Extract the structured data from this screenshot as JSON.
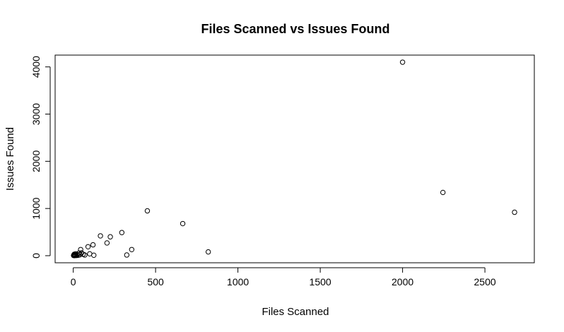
{
  "chart_data": {
    "type": "scatter",
    "title": "Files Scanned vs Issues Found",
    "xlabel": "Files Scanned",
    "ylabel": "Issues Found",
    "xlim": [
      -110,
      2800
    ],
    "ylim": [
      -150,
      4250
    ],
    "xticks": [
      0,
      500,
      1000,
      1500,
      2000,
      2500
    ],
    "yticks": [
      0,
      1000,
      2000,
      3000,
      4000
    ],
    "grid": false,
    "legend": "none",
    "colors": {
      "point": "#000000",
      "axis": "#000000",
      "background": "#ffffff"
    },
    "points": [
      {
        "x": 2,
        "y": 5
      },
      {
        "x": 4,
        "y": 15
      },
      {
        "x": 6,
        "y": 30
      },
      {
        "x": 8,
        "y": 2
      },
      {
        "x": 10,
        "y": 20
      },
      {
        "x": 12,
        "y": 8
      },
      {
        "x": 15,
        "y": 40
      },
      {
        "x": 18,
        "y": 12
      },
      {
        "x": 20,
        "y": 5
      },
      {
        "x": 25,
        "y": 25
      },
      {
        "x": 30,
        "y": 10
      },
      {
        "x": 35,
        "y": 55
      },
      {
        "x": 40,
        "y": 20
      },
      {
        "x": 45,
        "y": 130
      },
      {
        "x": 50,
        "y": 60
      },
      {
        "x": 60,
        "y": 30
      },
      {
        "x": 70,
        "y": 15
      },
      {
        "x": 90,
        "y": 190
      },
      {
        "x": 100,
        "y": 40
      },
      {
        "x": 120,
        "y": 230
      },
      {
        "x": 125,
        "y": 10
      },
      {
        "x": 165,
        "y": 420
      },
      {
        "x": 205,
        "y": 270
      },
      {
        "x": 225,
        "y": 400
      },
      {
        "x": 295,
        "y": 490
      },
      {
        "x": 325,
        "y": 15
      },
      {
        "x": 355,
        "y": 130
      },
      {
        "x": 450,
        "y": 950
      },
      {
        "x": 665,
        "y": 680
      },
      {
        "x": 820,
        "y": 80
      },
      {
        "x": 2000,
        "y": 4100
      },
      {
        "x": 2245,
        "y": 1340
      },
      {
        "x": 2680,
        "y": 920
      }
    ]
  }
}
